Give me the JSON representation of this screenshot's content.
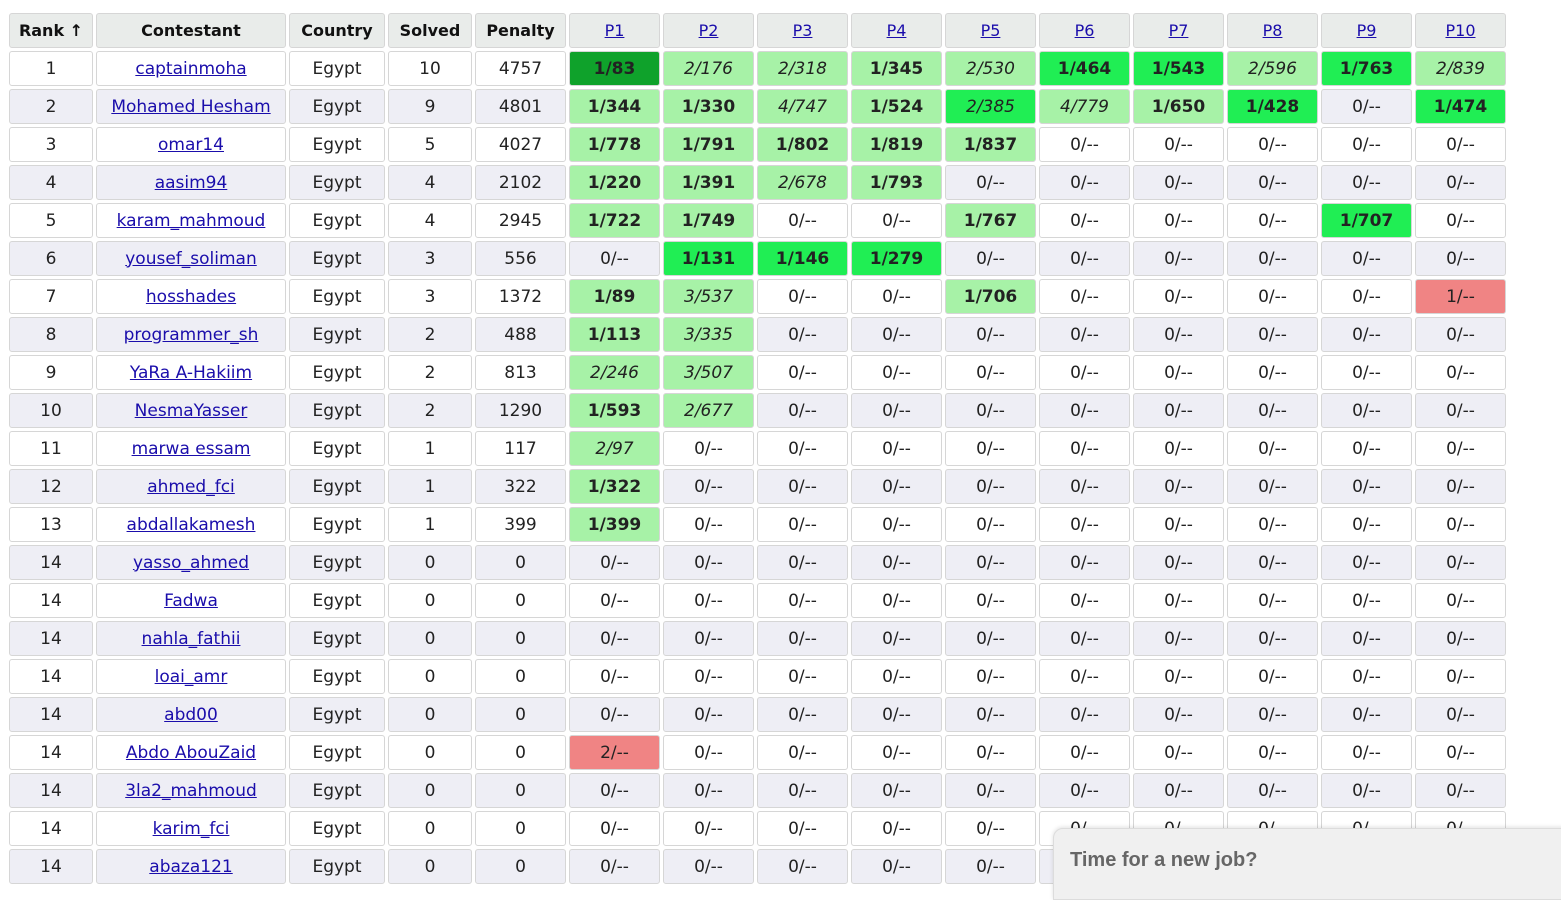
{
  "headers": {
    "rank": "Rank ↑",
    "contestant": "Contestant",
    "country": "Country",
    "solved": "Solved",
    "penalty": "Penalty",
    "problems": [
      "P1",
      "P2",
      "P3",
      "P4",
      "P5",
      "P6",
      "P7",
      "P8",
      "P9",
      "P10"
    ]
  },
  "rows": [
    {
      "rank": "1",
      "name": "captainmoha",
      "country": "Egypt",
      "solved": "10",
      "penalty": "4757",
      "cells": [
        {
          "t": "1/83",
          "s": "first"
        },
        {
          "t": "2/176",
          "s": "late"
        },
        {
          "t": "2/318",
          "s": "late"
        },
        {
          "t": "1/345",
          "s": "ok"
        },
        {
          "t": "2/530",
          "s": "late"
        },
        {
          "t": "1/464",
          "s": "best"
        },
        {
          "t": "1/543",
          "s": "best"
        },
        {
          "t": "2/596",
          "s": "late"
        },
        {
          "t": "1/763",
          "s": "best"
        },
        {
          "t": "2/839",
          "s": "late"
        }
      ]
    },
    {
      "rank": "2",
      "name": "Mohamed Hesham",
      "country": "Egypt",
      "solved": "9",
      "penalty": "4801",
      "cells": [
        {
          "t": "1/344",
          "s": "ok"
        },
        {
          "t": "1/330",
          "s": "ok"
        },
        {
          "t": "4/747",
          "s": "late"
        },
        {
          "t": "1/524",
          "s": "ok"
        },
        {
          "t": "2/385",
          "s": "latebest"
        },
        {
          "t": "4/779",
          "s": "late"
        },
        {
          "t": "1/650",
          "s": "ok"
        },
        {
          "t": "1/428",
          "s": "best"
        },
        {
          "t": "0/--",
          "s": "none"
        },
        {
          "t": "1/474",
          "s": "best"
        }
      ]
    },
    {
      "rank": "3",
      "name": "omar14",
      "country": "Egypt",
      "solved": "5",
      "penalty": "4027",
      "cells": [
        {
          "t": "1/778",
          "s": "ok"
        },
        {
          "t": "1/791",
          "s": "ok"
        },
        {
          "t": "1/802",
          "s": "ok"
        },
        {
          "t": "1/819",
          "s": "ok"
        },
        {
          "t": "1/837",
          "s": "ok"
        },
        {
          "t": "0/--",
          "s": "none"
        },
        {
          "t": "0/--",
          "s": "none"
        },
        {
          "t": "0/--",
          "s": "none"
        },
        {
          "t": "0/--",
          "s": "none"
        },
        {
          "t": "0/--",
          "s": "none"
        }
      ]
    },
    {
      "rank": "4",
      "name": "aasim94",
      "country": "Egypt",
      "solved": "4",
      "penalty": "2102",
      "cells": [
        {
          "t": "1/220",
          "s": "ok"
        },
        {
          "t": "1/391",
          "s": "ok"
        },
        {
          "t": "2/678",
          "s": "late"
        },
        {
          "t": "1/793",
          "s": "ok"
        },
        {
          "t": "0/--",
          "s": "none"
        },
        {
          "t": "0/--",
          "s": "none"
        },
        {
          "t": "0/--",
          "s": "none"
        },
        {
          "t": "0/--",
          "s": "none"
        },
        {
          "t": "0/--",
          "s": "none"
        },
        {
          "t": "0/--",
          "s": "none"
        }
      ]
    },
    {
      "rank": "5",
      "name": "karam_mahmoud",
      "country": "Egypt",
      "solved": "4",
      "penalty": "2945",
      "cells": [
        {
          "t": "1/722",
          "s": "ok"
        },
        {
          "t": "1/749",
          "s": "ok"
        },
        {
          "t": "0/--",
          "s": "none"
        },
        {
          "t": "0/--",
          "s": "none"
        },
        {
          "t": "1/767",
          "s": "ok"
        },
        {
          "t": "0/--",
          "s": "none"
        },
        {
          "t": "0/--",
          "s": "none"
        },
        {
          "t": "0/--",
          "s": "none"
        },
        {
          "t": "1/707",
          "s": "best"
        },
        {
          "t": "0/--",
          "s": "none"
        }
      ]
    },
    {
      "rank": "6",
      "name": "yousef_soliman",
      "country": "Egypt",
      "solved": "3",
      "penalty": "556",
      "cells": [
        {
          "t": "0/--",
          "s": "none"
        },
        {
          "t": "1/131",
          "s": "best"
        },
        {
          "t": "1/146",
          "s": "best"
        },
        {
          "t": "1/279",
          "s": "best"
        },
        {
          "t": "0/--",
          "s": "none"
        },
        {
          "t": "0/--",
          "s": "none"
        },
        {
          "t": "0/--",
          "s": "none"
        },
        {
          "t": "0/--",
          "s": "none"
        },
        {
          "t": "0/--",
          "s": "none"
        },
        {
          "t": "0/--",
          "s": "none"
        }
      ]
    },
    {
      "rank": "7",
      "name": "hosshades",
      "country": "Egypt",
      "solved": "3",
      "penalty": "1372",
      "cells": [
        {
          "t": "1/89",
          "s": "ok"
        },
        {
          "t": "3/537",
          "s": "late"
        },
        {
          "t": "0/--",
          "s": "none"
        },
        {
          "t": "0/--",
          "s": "none"
        },
        {
          "t": "1/706",
          "s": "ok"
        },
        {
          "t": "0/--",
          "s": "none"
        },
        {
          "t": "0/--",
          "s": "none"
        },
        {
          "t": "0/--",
          "s": "none"
        },
        {
          "t": "0/--",
          "s": "none"
        },
        {
          "t": "1/--",
          "s": "fail"
        }
      ]
    },
    {
      "rank": "8",
      "name": "programmer_sh",
      "country": "Egypt",
      "solved": "2",
      "penalty": "488",
      "cells": [
        {
          "t": "1/113",
          "s": "ok"
        },
        {
          "t": "3/335",
          "s": "late"
        },
        {
          "t": "0/--",
          "s": "none"
        },
        {
          "t": "0/--",
          "s": "none"
        },
        {
          "t": "0/--",
          "s": "none"
        },
        {
          "t": "0/--",
          "s": "none"
        },
        {
          "t": "0/--",
          "s": "none"
        },
        {
          "t": "0/--",
          "s": "none"
        },
        {
          "t": "0/--",
          "s": "none"
        },
        {
          "t": "0/--",
          "s": "none"
        }
      ]
    },
    {
      "rank": "9",
      "name": "YaRa A-Hakiim",
      "country": "Egypt",
      "solved": "2",
      "penalty": "813",
      "cells": [
        {
          "t": "2/246",
          "s": "late"
        },
        {
          "t": "3/507",
          "s": "late"
        },
        {
          "t": "0/--",
          "s": "none"
        },
        {
          "t": "0/--",
          "s": "none"
        },
        {
          "t": "0/--",
          "s": "none"
        },
        {
          "t": "0/--",
          "s": "none"
        },
        {
          "t": "0/--",
          "s": "none"
        },
        {
          "t": "0/--",
          "s": "none"
        },
        {
          "t": "0/--",
          "s": "none"
        },
        {
          "t": "0/--",
          "s": "none"
        }
      ]
    },
    {
      "rank": "10",
      "name": "NesmaYasser",
      "country": "Egypt",
      "solved": "2",
      "penalty": "1290",
      "cells": [
        {
          "t": "1/593",
          "s": "ok"
        },
        {
          "t": "2/677",
          "s": "late"
        },
        {
          "t": "0/--",
          "s": "none"
        },
        {
          "t": "0/--",
          "s": "none"
        },
        {
          "t": "0/--",
          "s": "none"
        },
        {
          "t": "0/--",
          "s": "none"
        },
        {
          "t": "0/--",
          "s": "none"
        },
        {
          "t": "0/--",
          "s": "none"
        },
        {
          "t": "0/--",
          "s": "none"
        },
        {
          "t": "0/--",
          "s": "none"
        }
      ]
    },
    {
      "rank": "11",
      "name": "marwa essam",
      "country": "Egypt",
      "solved": "1",
      "penalty": "117",
      "cells": [
        {
          "t": "2/97",
          "s": "late"
        },
        {
          "t": "0/--",
          "s": "none"
        },
        {
          "t": "0/--",
          "s": "none"
        },
        {
          "t": "0/--",
          "s": "none"
        },
        {
          "t": "0/--",
          "s": "none"
        },
        {
          "t": "0/--",
          "s": "none"
        },
        {
          "t": "0/--",
          "s": "none"
        },
        {
          "t": "0/--",
          "s": "none"
        },
        {
          "t": "0/--",
          "s": "none"
        },
        {
          "t": "0/--",
          "s": "none"
        }
      ]
    },
    {
      "rank": "12",
      "name": "ahmed_fci",
      "country": "Egypt",
      "solved": "1",
      "penalty": "322",
      "cells": [
        {
          "t": "1/322",
          "s": "ok"
        },
        {
          "t": "0/--",
          "s": "none"
        },
        {
          "t": "0/--",
          "s": "none"
        },
        {
          "t": "0/--",
          "s": "none"
        },
        {
          "t": "0/--",
          "s": "none"
        },
        {
          "t": "0/--",
          "s": "none"
        },
        {
          "t": "0/--",
          "s": "none"
        },
        {
          "t": "0/--",
          "s": "none"
        },
        {
          "t": "0/--",
          "s": "none"
        },
        {
          "t": "0/--",
          "s": "none"
        }
      ]
    },
    {
      "rank": "13",
      "name": "abdallakamesh",
      "country": "Egypt",
      "solved": "1",
      "penalty": "399",
      "cells": [
        {
          "t": "1/399",
          "s": "ok"
        },
        {
          "t": "0/--",
          "s": "none"
        },
        {
          "t": "0/--",
          "s": "none"
        },
        {
          "t": "0/--",
          "s": "none"
        },
        {
          "t": "0/--",
          "s": "none"
        },
        {
          "t": "0/--",
          "s": "none"
        },
        {
          "t": "0/--",
          "s": "none"
        },
        {
          "t": "0/--",
          "s": "none"
        },
        {
          "t": "0/--",
          "s": "none"
        },
        {
          "t": "0/--",
          "s": "none"
        }
      ]
    },
    {
      "rank": "14",
      "name": "yasso_ahmed",
      "country": "Egypt",
      "solved": "0",
      "penalty": "0",
      "cells": "zero"
    },
    {
      "rank": "14",
      "name": "Fadwa",
      "country": "Egypt",
      "solved": "0",
      "penalty": "0",
      "cells": "zero"
    },
    {
      "rank": "14",
      "name": "nahla_fathii",
      "country": "Egypt",
      "solved": "0",
      "penalty": "0",
      "cells": "zero"
    },
    {
      "rank": "14",
      "name": "loai_amr",
      "country": "Egypt",
      "solved": "0",
      "penalty": "0",
      "cells": "zero"
    },
    {
      "rank": "14",
      "name": "abd00",
      "country": "Egypt",
      "solved": "0",
      "penalty": "0",
      "cells": "zero"
    },
    {
      "rank": "14",
      "name": "Abdo AbouZaid",
      "country": "Egypt",
      "solved": "0",
      "penalty": "0",
      "cells": [
        {
          "t": "2/--",
          "s": "fail"
        },
        {
          "t": "0/--",
          "s": "none"
        },
        {
          "t": "0/--",
          "s": "none"
        },
        {
          "t": "0/--",
          "s": "none"
        },
        {
          "t": "0/--",
          "s": "none"
        },
        {
          "t": "0/--",
          "s": "none"
        },
        {
          "t": "0/--",
          "s": "none"
        },
        {
          "t": "0/--",
          "s": "none"
        },
        {
          "t": "0/--",
          "s": "none"
        },
        {
          "t": "0/--",
          "s": "none"
        }
      ]
    },
    {
      "rank": "14",
      "name": "3la2_mahmoud",
      "country": "Egypt",
      "solved": "0",
      "penalty": "0",
      "cells": "zero"
    },
    {
      "rank": "14",
      "name": "karim_fci",
      "country": "Egypt",
      "solved": "0",
      "penalty": "0",
      "cells": "zero"
    },
    {
      "rank": "14",
      "name": "abaza121",
      "country": "Egypt",
      "solved": "0",
      "penalty": "0",
      "cells": "zero"
    }
  ],
  "zero_cell": "0/--",
  "popup": {
    "text": "Time for a new job?"
  },
  "colors": {
    "first_solve": "#0fa22b",
    "best_solve": "#20ee54",
    "solved": "#a7f2a7",
    "failed": "#f08484",
    "header_bg": "#e9ecea",
    "row_alt": "#eeeef5",
    "link": "#1a0dab"
  }
}
